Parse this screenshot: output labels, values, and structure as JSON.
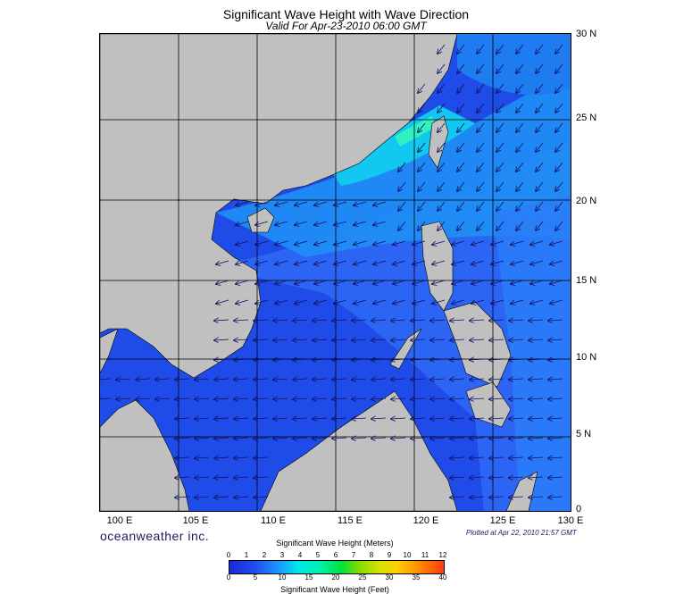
{
  "title": "Significant Wave Height with Wave Direction",
  "subtitle": "Valid For Apr-23-2010 06:00 GMT",
  "brand": "oceanweather inc.",
  "plotted": "Plotted at Apr 22, 2010 21:57 GMT",
  "lat_labels": [
    "30 N",
    "25 N",
    "20 N",
    "15 N",
    "10 N",
    "5 N",
    "0"
  ],
  "lon_labels": [
    "100 E",
    "105 E",
    "110 E",
    "115 E",
    "120 E",
    "125 E",
    "130 E"
  ],
  "legend": {
    "meters_title": "Significant Wave Height (Meters)",
    "feet_title": "Significant Wave Height (Feet)",
    "meters_ticks": [
      "0",
      "1",
      "2",
      "3",
      "4",
      "5",
      "6",
      "7",
      "8",
      "9",
      "10",
      "11",
      "12"
    ],
    "feet_ticks": [
      "0",
      "5",
      "10",
      "15",
      "20",
      "25",
      "30",
      "35",
      "40"
    ]
  },
  "colors": {
    "land": "#c0c0c0",
    "deep_blue": "#1a2ad8",
    "mid_blue": "#2f6cf5",
    "cyan": "#00e5ee",
    "green": "#00e040"
  }
}
